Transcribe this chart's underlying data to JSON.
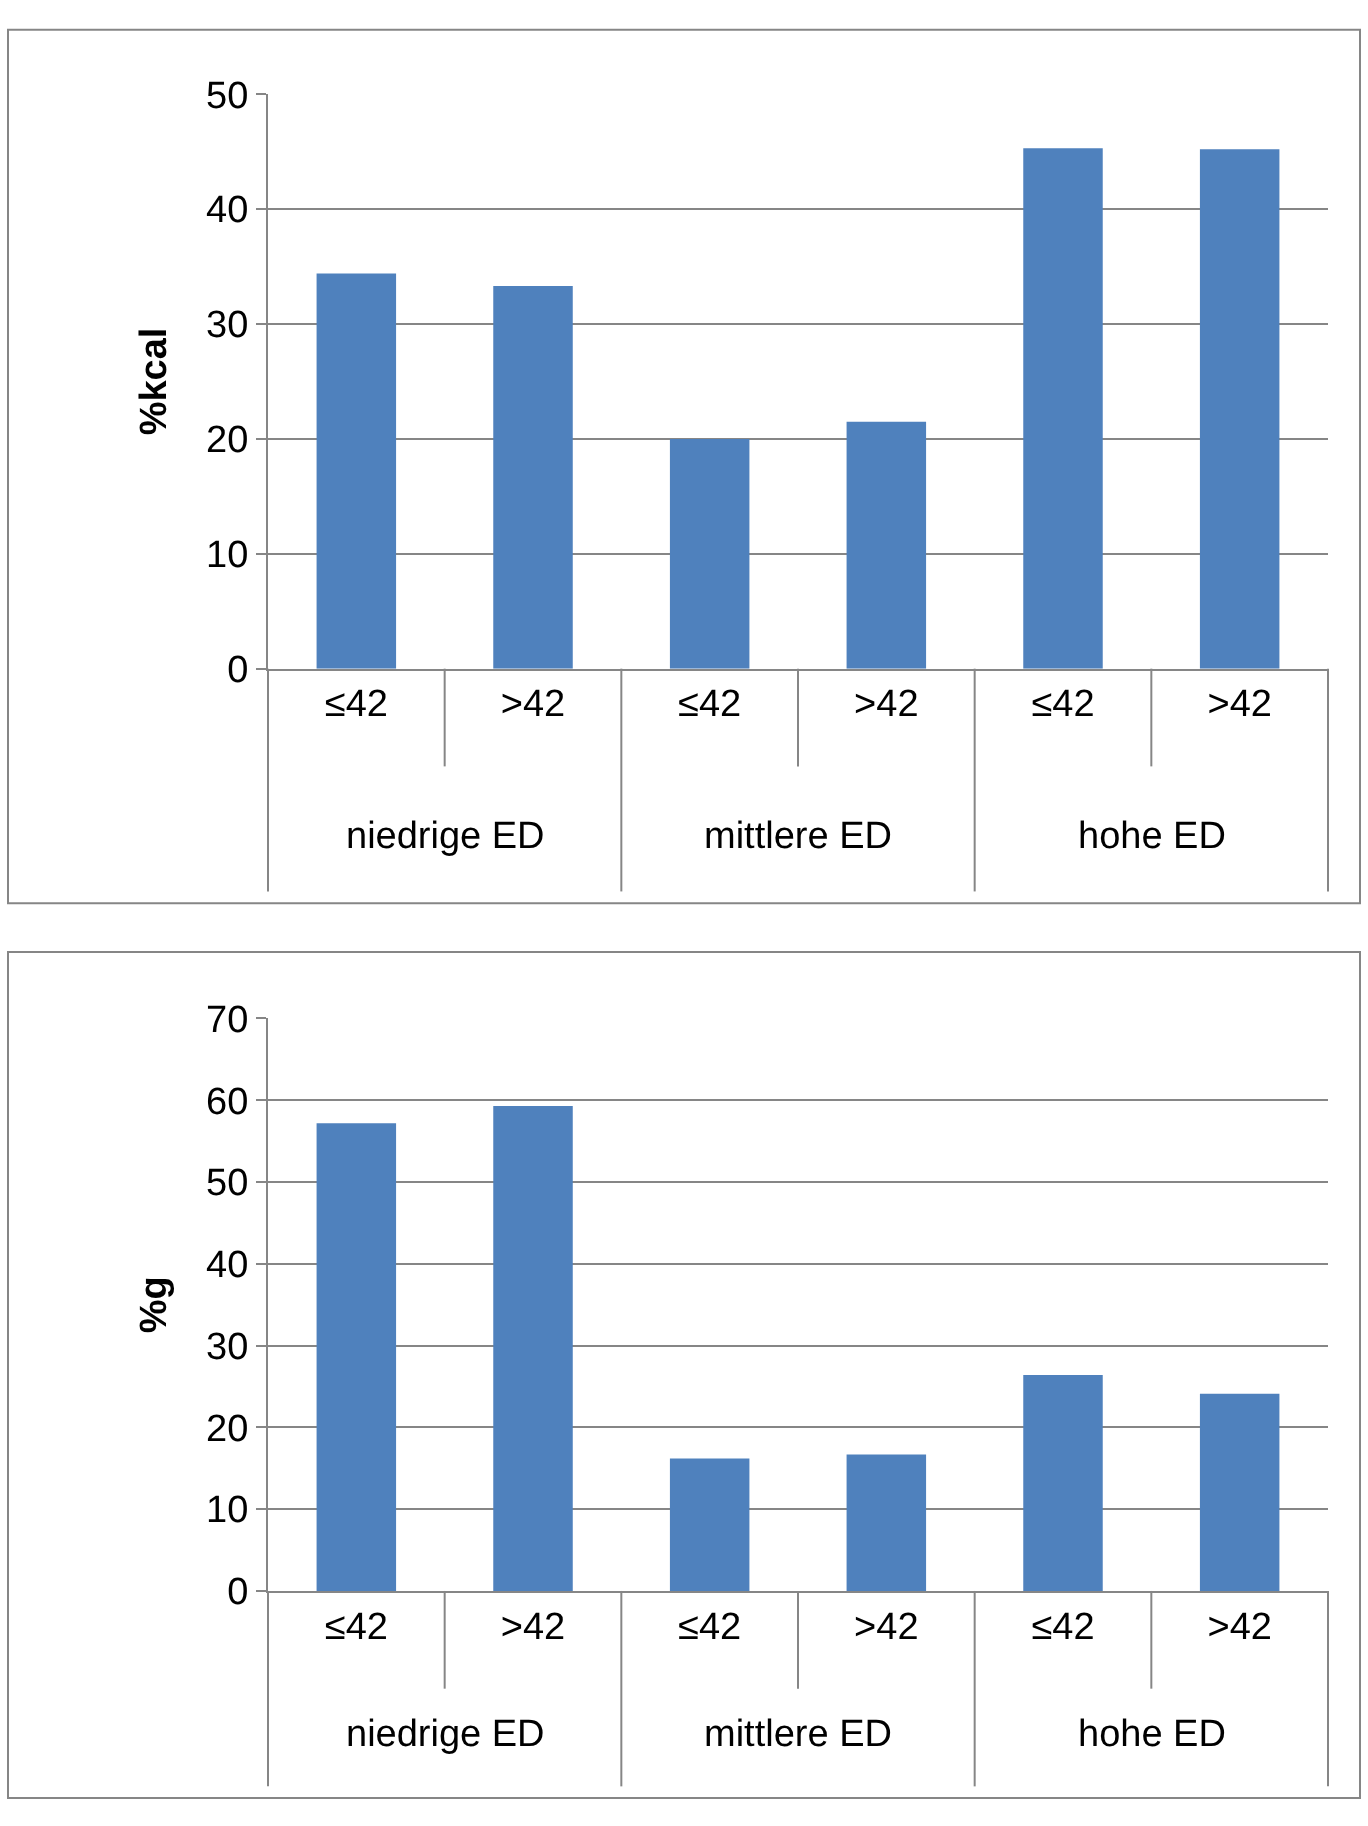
{
  "chart_data": [
    {
      "type": "bar",
      "ylabel": "%kcal",
      "categories": [
        "≤42",
        ">42",
        "≤42",
        ">42",
        "≤42",
        ">42"
      ],
      "values": [
        34.4,
        33.3,
        20.0,
        21.5,
        45.3,
        45.2
      ],
      "color": "#4f81bd",
      "ylim": [
        0,
        50
      ],
      "yticks": [
        0,
        10,
        20,
        30,
        40,
        50
      ],
      "grid": "y",
      "legend": false,
      "annotations": [
        "niedrige ED",
        "mittlere ED",
        "hohe ED"
      ]
    },
    {
      "type": "bar",
      "ylabel": "%g",
      "categories": [
        "≤42",
        ">42",
        "≤42",
        ">42",
        "≤42",
        ">42"
      ],
      "values": [
        57.2,
        59.3,
        16.2,
        16.7,
        26.4,
        24.1
      ],
      "color": "#4f81bd",
      "ylim": [
        0,
        70
      ],
      "yticks": [
        0,
        10,
        20,
        30,
        40,
        50,
        60,
        70
      ],
      "grid": "y",
      "legend": false,
      "annotations": [
        "niedrige ED",
        "mittlere ED",
        "hohe ED"
      ]
    }
  ]
}
